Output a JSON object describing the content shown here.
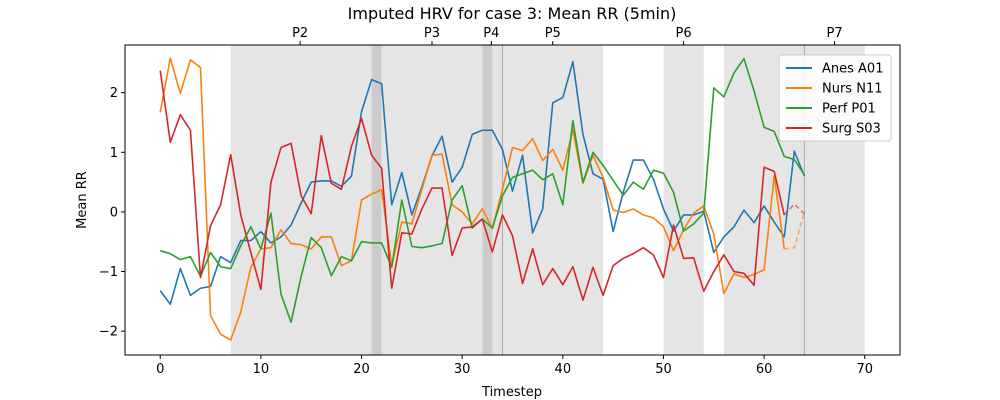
{
  "chart_data": {
    "type": "line",
    "title": "Imputed HRV for case 3: Mean RR (5min)",
    "xlabel": "Timestep",
    "ylabel": "Mean RR",
    "xlim": [
      -3.5,
      73.5
    ],
    "ylim": [
      -2.4,
      2.8
    ],
    "xticks": [
      0,
      10,
      20,
      30,
      40,
      50,
      60,
      70
    ],
    "yticks": [
      -2,
      -1,
      0,
      1,
      2
    ],
    "grid": false,
    "legend_position": "top-right",
    "phases": [
      {
        "label": "P2",
        "start": 7,
        "end": 21,
        "color": "#e5e5e5"
      },
      {
        "label": "",
        "start": 21,
        "end": 22,
        "color": "#cccccc"
      },
      {
        "label": "P3",
        "start": 22,
        "end": 32,
        "color": "#e5e5e5"
      },
      {
        "label": "P4",
        "start": 32,
        "end": 33,
        "color": "#cccccc"
      },
      {
        "label": "",
        "start": 33,
        "end": 34,
        "color": "#e5e5e5"
      },
      {
        "label": "P5",
        "start": 34,
        "end": 44,
        "color": "#e5e5e5"
      },
      {
        "label": "P6",
        "start": 50,
        "end": 54,
        "color": "#e5e5e5"
      },
      {
        "label": "",
        "start": 56,
        "end": 64,
        "color": "#e5e5e5"
      },
      {
        "label": "P7",
        "start": 64,
        "end": 70,
        "color": "#e5e5e5"
      }
    ],
    "phase_label_positions": [
      13.9,
      27,
      32.9,
      39,
      52,
      67
    ],
    "series": [
      {
        "name": "Anes A01",
        "color": "#1f77b4",
        "values": [
          -1.32,
          -1.55,
          -0.95,
          -1.4,
          -1.28,
          -1.25,
          -0.75,
          -0.85,
          -0.48,
          -0.48,
          -0.33,
          -0.52,
          -0.42,
          -0.22,
          0.15,
          0.5,
          0.52,
          0.52,
          0.43,
          0.6,
          1.68,
          2.22,
          2.15,
          0.12,
          0.66,
          -0.05,
          0.42,
          0.94,
          1.27,
          0.5,
          0.75,
          1.3,
          1.37,
          1.37,
          1.05,
          0.35,
          0.95,
          -0.35,
          0.05,
          1.83,
          1.92,
          2.52,
          1.3,
          0.64,
          0.55,
          -0.33,
          0.33,
          0.87,
          0.87,
          0.55,
          0.05,
          -0.32,
          -0.05,
          -0.05,
          0.01,
          -0.68,
          -0.42,
          -0.25,
          0.03,
          -0.18,
          0.1,
          -0.17,
          -0.42,
          1.02,
          0.6
        ],
        "imputed_from": 64
      },
      {
        "name": "Nurs N11",
        "color": "#ff7f0e",
        "values": [
          1.67,
          2.58,
          1.99,
          2.55,
          2.42,
          -1.74,
          -2.05,
          -2.15,
          -1.68,
          -0.93,
          -0.62,
          -0.6,
          -0.3,
          -0.53,
          -0.55,
          -0.62,
          -0.42,
          -0.42,
          -0.9,
          -0.82,
          0.2,
          0.3,
          0.37,
          -0.9,
          -0.17,
          -0.2,
          0.38,
          0.95,
          0.97,
          0.12,
          0.0,
          -0.2,
          0.05,
          -0.28,
          0.38,
          1.08,
          1.03,
          1.23,
          0.86,
          1.05,
          0.7,
          1.38,
          0.48,
          0.95,
          0.58,
          0.03,
          -0.01,
          0.05,
          -0.05,
          -0.1,
          -0.25,
          -0.65,
          -0.3,
          -0.02,
          0.1,
          -0.37,
          -1.37,
          -1.04,
          -1.1,
          -1.05,
          -0.97,
          0.6,
          -0.62,
          -0.6,
          0.0
        ],
        "imputed_from": 62,
        "imputed_tail": [
          -0.62,
          -0.6
        ]
      },
      {
        "name": "Perf P01",
        "color": "#2ca02c",
        "values": [
          -0.65,
          -0.7,
          -0.8,
          -0.75,
          -1.08,
          -0.68,
          -0.92,
          -0.95,
          -0.57,
          -0.25,
          -0.62,
          -0.02,
          -1.38,
          -1.85,
          -1.08,
          -0.43,
          -0.6,
          -1.07,
          -0.75,
          -0.82,
          -0.5,
          -0.52,
          -0.52,
          -0.93,
          0.2,
          -0.58,
          -0.6,
          -0.57,
          -0.53,
          0.2,
          0.44,
          -0.27,
          -0.12,
          -0.27,
          0.27,
          0.58,
          0.64,
          0.7,
          0.54,
          0.64,
          0.12,
          1.53,
          0.5,
          1.0,
          0.78,
          0.53,
          0.28,
          0.5,
          0.38,
          0.7,
          0.65,
          0.33,
          -0.32,
          -0.2,
          -0.02,
          2.08,
          1.93,
          2.33,
          2.57,
          2.03,
          1.42,
          1.35,
          0.93,
          0.88,
          0.62
        ]
      },
      {
        "name": "Surg S03",
        "color": "#d62728",
        "values": [
          2.37,
          1.17,
          1.63,
          1.37,
          -1.1,
          -0.23,
          0.12,
          0.96,
          -0.05,
          -0.68,
          -1.3,
          0.5,
          1.08,
          1.15,
          0.27,
          -0.03,
          1.28,
          0.48,
          0.38,
          1.1,
          1.57,
          0.95,
          0.73,
          -1.28,
          -0.35,
          -0.37,
          0.05,
          0.4,
          0.4,
          -0.73,
          -0.27,
          -0.25,
          -0.12,
          -0.67,
          -0.05,
          -0.4,
          -1.2,
          -0.62,
          -1.22,
          -0.95,
          -1.22,
          -0.92,
          -1.48,
          -0.93,
          -1.4,
          -0.9,
          -0.78,
          -0.7,
          -0.6,
          -0.72,
          -1.1,
          -0.22,
          -0.78,
          -0.77,
          -1.33,
          -1.0,
          -0.72,
          -1.0,
          -1.03,
          -1.23,
          0.75,
          0.68,
          -0.05,
          0.13,
          -0.03
        ],
        "imputed_from": 62
      }
    ]
  }
}
